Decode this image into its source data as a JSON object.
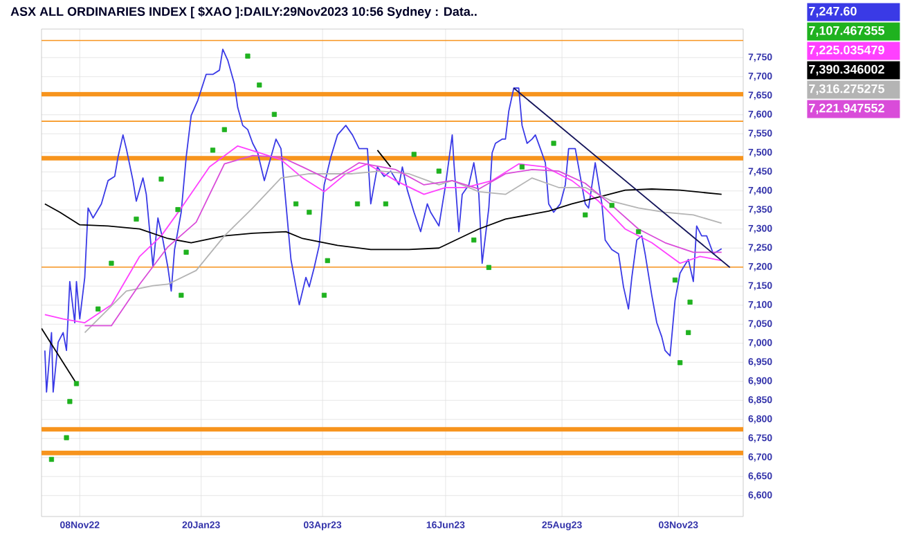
{
  "chart_data": {
    "type": "line",
    "title": "ASX ALL ORDINARIES INDEX [ $XAO ]:DAILY:29Nov2023 10:56 Sydney : Data..",
    "xlim": [
      "2022-10-16",
      "2023-12-12"
    ],
    "ylim": [
      6545,
      7825
    ],
    "grid": true,
    "xticks": [
      {
        "value": "2022-11-08",
        "label": "08Nov22"
      },
      {
        "value": "2023-01-20",
        "label": "20Jan23"
      },
      {
        "value": "2023-04-03",
        "label": "03Apr23"
      },
      {
        "value": "2023-06-16",
        "label": "16Jun23"
      },
      {
        "value": "2023-08-25",
        "label": "25Aug23"
      },
      {
        "value": "2023-11-03",
        "label": "03Nov23"
      }
    ],
    "yticks": [
      {
        "value": 6600,
        "label": "6,600"
      },
      {
        "value": 6650,
        "label": "6,650"
      },
      {
        "value": 6700,
        "label": "6,700"
      },
      {
        "value": 6750,
        "label": "6,750"
      },
      {
        "value": 6800,
        "label": "6,800"
      },
      {
        "value": 6850,
        "label": "6,850"
      },
      {
        "value": 6900,
        "label": "6,900"
      },
      {
        "value": 6950,
        "label": "6,950"
      },
      {
        "value": 7000,
        "label": "7,000"
      },
      {
        "value": 7050,
        "label": "7,050"
      },
      {
        "value": 7100,
        "label": "7,100"
      },
      {
        "value": 7150,
        "label": "7,150"
      },
      {
        "value": 7200,
        "label": "7,200"
      },
      {
        "value": 7250,
        "label": "7,250"
      },
      {
        "value": 7300,
        "label": "7,300"
      },
      {
        "value": 7350,
        "label": "7,350"
      },
      {
        "value": 7400,
        "label": "7,400"
      },
      {
        "value": 7450,
        "label": "7,450"
      },
      {
        "value": 7500,
        "label": "7,500"
      },
      {
        "value": 7550,
        "label": "7,550"
      },
      {
        "value": 7600,
        "label": "7,600"
      },
      {
        "value": 7650,
        "label": "7,650"
      },
      {
        "value": 7700,
        "label": "7,700"
      },
      {
        "value": 7750,
        "label": "7,750"
      }
    ],
    "ref_lines": [
      {
        "axis": "y",
        "value": 7795,
        "color": "#f7941d"
      },
      {
        "axis": "y",
        "value": 7583,
        "color": "#f7941d"
      },
      {
        "axis": "y",
        "value": 7200,
        "color": "#f7941d"
      }
    ],
    "bands": [
      {
        "axis": "y",
        "from": 7648,
        "to": 7660,
        "color": "#f7941d"
      },
      {
        "axis": "y",
        "from": 7480,
        "to": 7492,
        "color": "#f7941d"
      },
      {
        "axis": "y",
        "from": 6768,
        "to": 6780,
        "color": "#f7941d"
      },
      {
        "axis": "y",
        "from": 6706,
        "to": 6718,
        "color": "#f7941d"
      }
    ],
    "annotations": [
      "7,247.60",
      "7,107.467355",
      "7,225.035479",
      "7,390.346002",
      "7,316.275275",
      "7,221.947552"
    ],
    "series": [
      {
        "type": "line",
        "color": "#3a3ae6",
        "x": [
          "2022-10-18",
          "2022-10-19",
          "2022-10-22",
          "2022-10-23",
          "2022-10-26",
          "2022-10-29",
          "2022-10-31",
          "2022-11-02",
          "2022-11-05",
          "2022-11-06",
          "2022-11-08",
          "2022-11-11",
          "2022-11-13",
          "2022-11-16",
          "2022-11-21",
          "2022-11-25",
          "2022-11-29",
          "2022-12-01",
          "2022-12-04",
          "2022-12-06",
          "2022-12-10",
          "2022-12-12",
          "2022-12-16",
          "2022-12-18",
          "2022-12-22",
          "2022-12-25",
          "2022-12-28",
          "2022-12-31",
          "2023-01-02",
          "2023-01-04",
          "2023-01-08",
          "2023-01-11",
          "2023-01-14",
          "2023-01-18",
          "2023-01-23",
          "2023-01-27",
          "2023-01-31",
          "2023-02-02",
          "2023-02-05",
          "2023-02-09",
          "2023-02-11",
          "2023-02-14",
          "2023-02-17",
          "2023-02-20",
          "2023-02-23",
          "2023-02-27",
          "2023-03-02",
          "2023-03-06",
          "2023-03-09",
          "2023-03-12",
          "2023-03-15",
          "2023-03-18",
          "2023-03-20",
          "2023-03-24",
          "2023-03-26",
          "2023-03-29",
          "2023-04-01",
          "2023-04-04",
          "2023-04-08",
          "2023-04-12",
          "2023-04-17",
          "2023-04-21",
          "2023-04-25",
          "2023-04-30",
          "2023-05-02",
          "2023-05-06",
          "2023-05-10",
          "2023-05-14",
          "2023-05-19",
          "2023-05-21",
          "2023-05-24",
          "2023-05-28",
          "2023-06-01",
          "2023-06-05",
          "2023-06-07",
          "2023-06-12",
          "2023-06-16",
          "2023-06-20",
          "2023-06-21",
          "2023-06-24",
          "2023-06-26",
          "2023-06-30",
          "2023-07-03",
          "2023-07-06",
          "2023-07-08",
          "2023-07-12",
          "2023-07-14",
          "2023-07-16",
          "2023-07-20",
          "2023-07-22",
          "2023-07-24",
          "2023-07-27",
          "2023-07-30",
          "2023-08-01",
          "2023-08-04",
          "2023-08-07",
          "2023-08-09",
          "2023-08-12",
          "2023-08-15",
          "2023-08-17",
          "2023-08-20",
          "2023-08-24",
          "2023-08-27",
          "2023-08-29",
          "2023-09-02",
          "2023-09-05",
          "2023-09-08",
          "2023-09-10",
          "2023-09-14",
          "2023-09-18",
          "2023-09-20",
          "2023-09-24",
          "2023-09-28",
          "2023-10-01",
          "2023-10-04",
          "2023-10-06",
          "2023-10-09",
          "2023-10-12",
          "2023-10-14",
          "2023-10-18",
          "2023-10-21",
          "2023-10-24",
          "2023-10-26",
          "2023-10-29",
          "2023-11-01",
          "2023-11-04",
          "2023-11-06",
          "2023-11-09",
          "2023-11-12",
          "2023-11-14",
          "2023-11-17",
          "2023-11-20",
          "2023-11-24",
          "2023-11-29"
        ],
        "values": [
          6981,
          6872,
          7028,
          6872,
          7003,
          7028,
          6981,
          7162,
          7054,
          7162,
          7064,
          7173,
          7355,
          7329,
          7366,
          7427,
          7438,
          7489,
          7547,
          7511,
          7427,
          7373,
          7434,
          7391,
          7202,
          7329,
          7271,
          7199,
          7137,
          7246,
          7344,
          7489,
          7598,
          7638,
          7706,
          7706,
          7717,
          7772,
          7743,
          7681,
          7619,
          7572,
          7561,
          7525,
          7500,
          7427,
          7474,
          7536,
          7511,
          7366,
          7220,
          7148,
          7101,
          7173,
          7148,
          7199,
          7257,
          7416,
          7489,
          7547,
          7572,
          7547,
          7511,
          7511,
          7366,
          7463,
          7438,
          7452,
          7416,
          7463,
          7402,
          7344,
          7293,
          7366,
          7344,
          7308,
          7416,
          7547,
          7474,
          7293,
          7391,
          7416,
          7474,
          7391,
          7210,
          7355,
          7500,
          7525,
          7536,
          7536,
          7609,
          7670,
          7670,
          7572,
          7525,
          7536,
          7547,
          7511,
          7474,
          7366,
          7344,
          7366,
          7416,
          7511,
          7511,
          7438,
          7366,
          7355,
          7474,
          7366,
          7271,
          7246,
          7235,
          7148,
          7090,
          7173,
          7271,
          7282,
          7235,
          7126,
          7054,
          7017,
          6981,
          6967,
          7112,
          7184,
          7199,
          7220,
          7162,
          7308,
          7282,
          7282,
          7235,
          7248
        ]
      },
      {
        "type": "scatter",
        "marker": "square",
        "color": "#1fb21f",
        "x": [
          "2022-10-22",
          "2022-10-31",
          "2022-11-02",
          "2022-11-06",
          "2022-11-19",
          "2022-11-27",
          "2022-12-12",
          "2022-12-27",
          "2023-01-06",
          "2023-01-08",
          "2023-01-11",
          "2023-01-27",
          "2023-02-03",
          "2023-02-17",
          "2023-02-24",
          "2023-03-05",
          "2023-03-18",
          "2023-03-26",
          "2023-04-04",
          "2023-04-06",
          "2023-04-24",
          "2023-05-11",
          "2023-05-28",
          "2023-06-12",
          "2023-07-03",
          "2023-07-12",
          "2023-08-01",
          "2023-08-20",
          "2023-09-08",
          "2023-09-24",
          "2023-10-10",
          "2023-11-01",
          "2023-11-04",
          "2023-11-09",
          "2023-11-10"
        ],
        "values": [
          6695,
          6752,
          6847,
          6894,
          7090,
          7210,
          7326,
          7431,
          7351,
          7126,
          7239,
          7507,
          7561,
          7754,
          7678,
          7601,
          7366,
          7344,
          7126,
          7217,
          7366,
          7366,
          7496,
          7452,
          7271,
          7199,
          7463,
          7525,
          7337,
          7362,
          7293,
          7166,
          6949,
          7028,
          7108
        ]
      },
      {
        "type": "line",
        "color": "#ff40ff",
        "x": [
          "2022-10-18",
          "2022-10-29",
          "2022-11-11",
          "2022-11-27",
          "2022-12-14",
          "2022-12-27",
          "2023-01-08",
          "2023-01-25",
          "2023-02-11",
          "2023-02-24",
          "2023-03-09",
          "2023-03-22",
          "2023-04-04",
          "2023-04-17",
          "2023-04-30",
          "2023-05-17",
          "2023-06-03",
          "2023-06-16",
          "2023-06-28",
          "2023-07-14",
          "2023-07-30",
          "2023-08-15",
          "2023-08-31",
          "2023-09-16",
          "2023-10-02",
          "2023-10-18",
          "2023-11-04",
          "2023-11-16",
          "2023-11-29"
        ],
        "values": [
          7075,
          7064,
          7054,
          7101,
          7228,
          7282,
          7355,
          7463,
          7518,
          7500,
          7482,
          7434,
          7398,
          7445,
          7471,
          7427,
          7391,
          7409,
          7409,
          7427,
          7471,
          7463,
          7427,
          7373,
          7300,
          7264,
          7210,
          7228,
          7217
        ]
      },
      {
        "type": "line",
        "color": "#000000",
        "x": [
          "2022-10-18",
          "2022-10-27",
          "2022-11-08",
          "2022-11-25",
          "2022-12-14",
          "2022-12-31",
          "2023-01-14",
          "2023-02-03",
          "2023-02-20",
          "2023-03-12",
          "2023-03-22",
          "2023-04-12",
          "2023-05-02",
          "2023-05-25",
          "2023-06-12",
          "2023-06-24",
          "2023-07-06",
          "2023-07-22",
          "2023-08-17",
          "2023-08-31",
          "2023-09-16",
          "2023-10-02",
          "2023-10-18",
          "2023-11-04",
          "2023-11-29"
        ],
        "values": [
          7366,
          7344,
          7311,
          7308,
          7300,
          7275,
          7264,
          7282,
          7289,
          7293,
          7275,
          7257,
          7246,
          7246,
          7250,
          7275,
          7300,
          7326,
          7347,
          7366,
          7384,
          7402,
          7405,
          7402,
          7391
        ]
      },
      {
        "type": "line",
        "color": "#b4b4b4",
        "x": [
          "2022-11-11",
          "2022-12-06",
          "2022-12-22",
          "2022-12-31",
          "2023-01-17",
          "2023-02-03",
          "2023-02-20",
          "2023-03-09",
          "2023-03-26",
          "2023-04-21",
          "2023-05-08",
          "2023-05-25",
          "2023-06-12",
          "2023-06-20",
          "2023-07-06",
          "2023-07-22",
          "2023-08-07",
          "2023-08-23",
          "2023-09-08",
          "2023-09-24",
          "2023-10-10",
          "2023-10-26",
          "2023-11-12",
          "2023-11-29"
        ],
        "values": [
          7028,
          7137,
          7151,
          7155,
          7191,
          7282,
          7355,
          7434,
          7445,
          7445,
          7452,
          7445,
          7416,
          7427,
          7398,
          7391,
          7434,
          7409,
          7409,
          7373,
          7355,
          7344,
          7337,
          7315
        ]
      },
      {
        "type": "line",
        "color": "#d94cd9",
        "x": [
          "2022-11-11",
          "2022-11-27",
          "2022-12-14",
          "2022-12-31",
          "2023-01-17",
          "2023-02-03",
          "2023-02-20",
          "2023-03-09",
          "2023-03-22",
          "2023-04-08",
          "2023-04-25",
          "2023-05-17",
          "2023-06-03",
          "2023-06-20",
          "2023-07-06",
          "2023-07-22",
          "2023-08-07",
          "2023-08-23",
          "2023-09-08",
          "2023-09-24",
          "2023-10-10",
          "2023-10-26",
          "2023-11-12",
          "2023-11-29"
        ],
        "values": [
          7046,
          7046,
          7155,
          7253,
          7318,
          7471,
          7493,
          7489,
          7463,
          7427,
          7474,
          7456,
          7416,
          7427,
          7405,
          7445,
          7456,
          7452,
          7420,
          7362,
          7300,
          7264,
          7239,
          7239
        ]
      },
      {
        "type": "line",
        "color": "#14145a",
        "x": [
          "2023-07-27",
          "2023-12-04"
        ],
        "values": [
          7670,
          7199
        ]
      },
      {
        "type": "line",
        "color": "#000000",
        "x": [
          "2022-10-16",
          "2022-11-06"
        ],
        "values": [
          7039,
          6894
        ]
      },
      {
        "type": "line",
        "color": "#000000",
        "x": [
          "2023-05-06",
          "2023-05-14"
        ],
        "values": [
          7507,
          7463
        ]
      }
    ]
  }
}
